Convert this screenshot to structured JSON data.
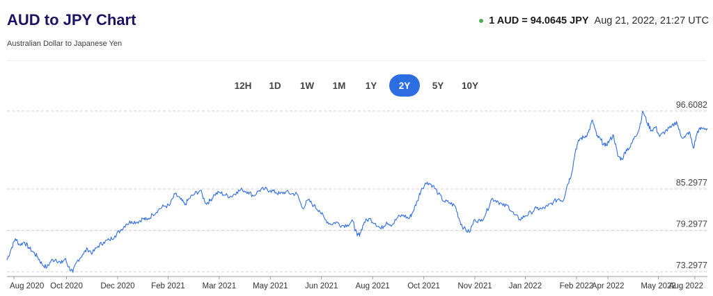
{
  "header": {
    "title": "AUD to JPY Chart",
    "subtitle": "Australian Dollar to Japanese Yen",
    "rate_value": "1 AUD = 94.0645 JPY",
    "rate_time": "Aug 21, 2022, 21:27 UTC",
    "status_color": "#4caf50"
  },
  "range_tabs": {
    "items": [
      "12H",
      "1D",
      "1W",
      "1M",
      "1Y",
      "2Y",
      "5Y",
      "10Y"
    ],
    "active": "2Y",
    "active_color": "#2d6de2"
  },
  "chart_data": {
    "type": "line",
    "title": "",
    "xlabel": "",
    "ylabel": "",
    "series_color": "#2d6de2",
    "grid": "horizontal dashed",
    "ylim": [
      72.6,
      97.6
    ],
    "y_ticks": [
      "96.6082",
      "85.2977",
      "79.2977",
      "73.2977"
    ],
    "y_tick_values": [
      96.6082,
      85.2977,
      79.2977,
      73.2977
    ],
    "x_ticks": [
      "Aug 2020",
      "Oct 2020",
      "Dec 2020",
      "Feb 2021",
      "Mar 2021",
      "May 2021",
      "Jun 2021",
      "Aug 2021",
      "Oct 2021",
      "Nov 2021",
      "Jan 2022",
      "Feb 2022",
      "Apr 2022",
      "May 2022",
      "Aug 2022"
    ],
    "x_tick_values": [
      0.01,
      0.085,
      0.158,
      0.23,
      0.303,
      0.376,
      0.449,
      0.522,
      0.595,
      0.668,
      0.74,
      0.813,
      0.858,
      0.93,
      0.982
    ],
    "series": [
      {
        "x": [
          0.0,
          0.006,
          0.012,
          0.018,
          0.025,
          0.031,
          0.038,
          0.044,
          0.05,
          0.057,
          0.063,
          0.07,
          0.077,
          0.083,
          0.088,
          0.094,
          0.1,
          0.108,
          0.115,
          0.122,
          0.13,
          0.138,
          0.146,
          0.154,
          0.162,
          0.17,
          0.178,
          0.186,
          0.194,
          0.2,
          0.208,
          0.216,
          0.224,
          0.232,
          0.24,
          0.248,
          0.254,
          0.26,
          0.268,
          0.276,
          0.284,
          0.29,
          0.296,
          0.304,
          0.312,
          0.32,
          0.328,
          0.336,
          0.344,
          0.352,
          0.36,
          0.368,
          0.376,
          0.384,
          0.39,
          0.398,
          0.406,
          0.414,
          0.422,
          0.43,
          0.438,
          0.446,
          0.454,
          0.462,
          0.47,
          0.478,
          0.486,
          0.494,
          0.5,
          0.504,
          0.51,
          0.518,
          0.526,
          0.534,
          0.542,
          0.55,
          0.558,
          0.566,
          0.574,
          0.58,
          0.586,
          0.592,
          0.6,
          0.608,
          0.616,
          0.624,
          0.632,
          0.64,
          0.646,
          0.652,
          0.66,
          0.668,
          0.676,
          0.684,
          0.692,
          0.7,
          0.708,
          0.716,
          0.724,
          0.732,
          0.74,
          0.748,
          0.756,
          0.764,
          0.772,
          0.78,
          0.788,
          0.794,
          0.8,
          0.806,
          0.812,
          0.818,
          0.824,
          0.83,
          0.836,
          0.842,
          0.848,
          0.854,
          0.86,
          0.866,
          0.872,
          0.878,
          0.884,
          0.89,
          0.896,
          0.902,
          0.908,
          0.914,
          0.92,
          0.926,
          0.932,
          0.94,
          0.948,
          0.956,
          0.962,
          0.968,
          0.974,
          0.98,
          0.986,
          0.992,
          1.0
        ],
        "y": [
          75.0,
          76.6,
          78.1,
          77.2,
          77.6,
          76.8,
          76.1,
          75.4,
          74.4,
          73.9,
          74.9,
          75.1,
          74.5,
          75.2,
          74.0,
          73.2,
          74.8,
          75.8,
          76.6,
          76.0,
          77.0,
          77.6,
          77.9,
          78.5,
          79.3,
          80.2,
          80.6,
          80.5,
          81.0,
          80.8,
          81.6,
          82.3,
          82.8,
          82.9,
          84.6,
          83.8,
          83.0,
          83.9,
          84.6,
          85.1,
          83.2,
          83.6,
          84.5,
          84.8,
          84.4,
          84.2,
          84.9,
          85.2,
          84.9,
          84.3,
          85.1,
          85.3,
          85.1,
          84.8,
          84.6,
          84.9,
          84.6,
          84.6,
          82.5,
          83.7,
          82.9,
          82.2,
          80.9,
          80.2,
          80.5,
          80.0,
          80.1,
          80.6,
          78.5,
          78.8,
          80.5,
          81.0,
          80.3,
          79.5,
          80.5,
          80.1,
          81.2,
          81.5,
          81.0,
          82.1,
          83.6,
          85.4,
          86.3,
          85.8,
          84.6,
          83.5,
          83.3,
          82.8,
          80.8,
          79.6,
          79.0,
          80.9,
          80.6,
          81.8,
          83.9,
          83.6,
          82.9,
          82.8,
          81.6,
          80.9,
          81.4,
          81.9,
          82.5,
          82.4,
          82.8,
          83.4,
          83.9,
          83.6,
          85.9,
          87.5,
          91.1,
          92.6,
          92.8,
          93.5,
          95.3,
          93.0,
          92.4,
          91.5,
          92.3,
          93.1,
          90.1,
          89.6,
          91.0,
          91.4,
          92.9,
          93.8,
          96.6,
          94.9,
          93.8,
          94.3,
          92.9,
          93.7,
          94.2,
          95.1,
          93.0,
          92.8,
          93.6,
          91.2,
          93.7,
          94.1,
          94.1
        ]
      }
    ]
  }
}
